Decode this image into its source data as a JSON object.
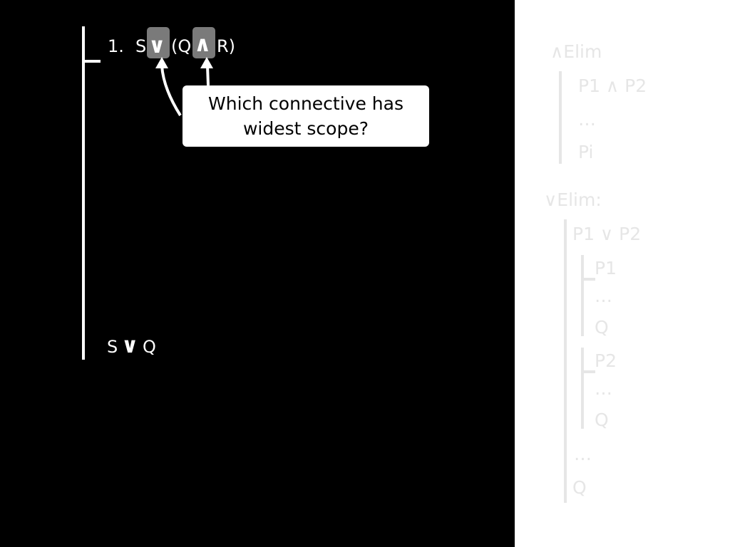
{
  "proof": {
    "premise": {
      "number": "1.",
      "left": "S",
      "main_connective": "∨",
      "open_paren": "(Q",
      "inner_connective": "∧",
      "right": "R)"
    },
    "goal": {
      "left": "S",
      "connective": "∨",
      "right": "Q"
    }
  },
  "callout": {
    "text": "Which connective has widest scope?"
  },
  "rules": {
    "and_elim": {
      "title": "∧Elim",
      "line1": "P1 ∧ P2",
      "dots": "…",
      "line2": "Pi"
    },
    "or_elim": {
      "title": "∨Elim:",
      "line1": "P1 ∨ P2",
      "sub1_assumption": "P1",
      "sub1_dots": "…",
      "sub1_result": "Q",
      "sub2_assumption": "P2",
      "sub2_dots": "…",
      "sub2_result": "Q",
      "dots": "…",
      "conclusion": "Q"
    }
  },
  "colors": {
    "background": "#000000",
    "foreground": "#ffffff",
    "highlight": "#7a7a7a",
    "faded_rule": "#e6e6e6"
  }
}
